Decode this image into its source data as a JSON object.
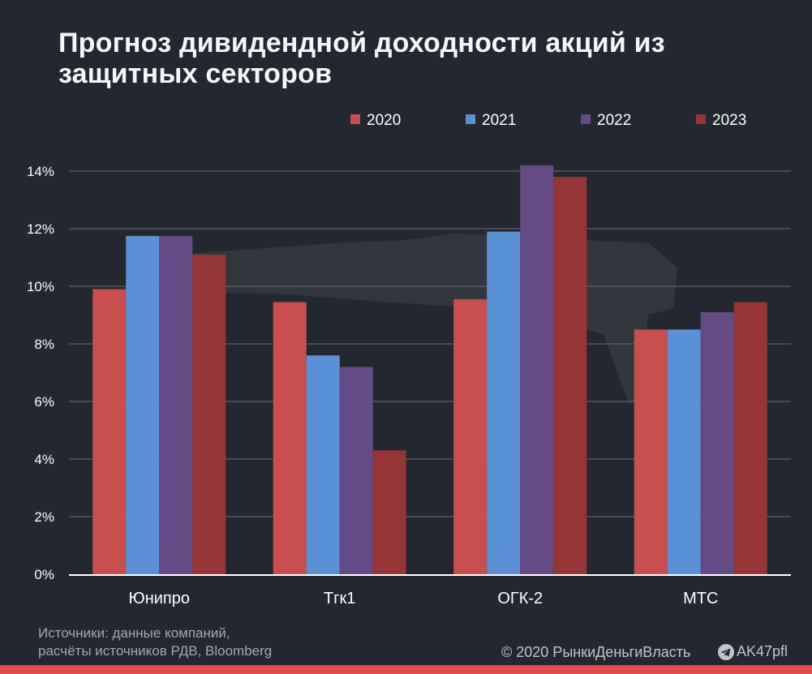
{
  "title": "Прогноз дивидендной доходности акций из защитных секторов",
  "sources_line1": "Источники: данные компаний,",
  "sources_line2": "расчёты источников РДВ, Bloomberg",
  "copyright": "© 2020  РынкиДеньгиВласть",
  "telegram_handle": "AK47pfl",
  "icons": [
    "telegram-icon",
    "rifle-watermark-icon"
  ],
  "colors": {
    "background": "#23272f",
    "bottom_bar": "#e34b4d"
  },
  "chart_data": {
    "type": "bar",
    "title": "Прогноз дивидендной доходности акций из защитных секторов",
    "categories": [
      "Юнипро",
      "Тгк1",
      "ОГК-2",
      "МТС"
    ],
    "series": [
      {
        "name": "2020",
        "color": "#c94f4d",
        "values": [
          9.9,
          9.45,
          9.55,
          8.5
        ]
      },
      {
        "name": "2021",
        "color": "#5a91d6",
        "values": [
          11.75,
          7.6,
          11.9,
          8.5
        ]
      },
      {
        "name": "2022",
        "color": "#654b85",
        "values": [
          11.75,
          7.2,
          14.2,
          9.1
        ]
      },
      {
        "name": "2023",
        "color": "#963536",
        "values": [
          11.1,
          4.3,
          13.8,
          9.45
        ]
      }
    ],
    "y_ticks": [
      "0%",
      "2%",
      "4%",
      "6%",
      "8%",
      "10%",
      "12%",
      "14%"
    ],
    "y_tick_values": [
      0,
      2,
      4,
      6,
      8,
      10,
      12,
      14
    ],
    "ylim": [
      0,
      14
    ],
    "xlabel": "",
    "ylabel": "",
    "grid": true,
    "legend_position": "top-right"
  }
}
